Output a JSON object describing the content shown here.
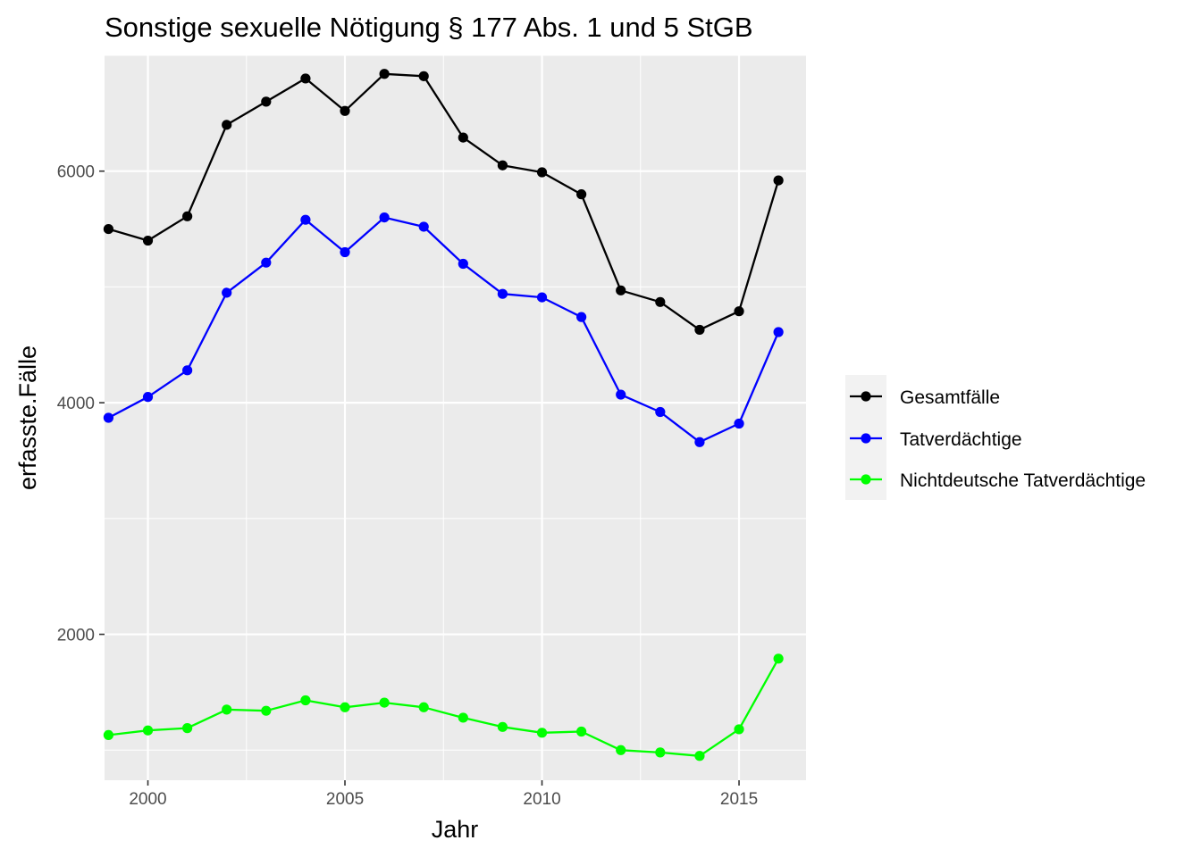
{
  "chart_data": {
    "type": "line",
    "title": "Sonstige sexuelle Nötigung § 177 Abs. 1 und 5 StGB",
    "xlabel": "Jahr",
    "ylabel": "erfasste.Fälle",
    "xlim": [
      1998.9,
      2016.7
    ],
    "ylim": [
      740,
      7000
    ],
    "x_ticks": [
      2000,
      2005,
      2010,
      2015
    ],
    "y_ticks": [
      2000,
      4000,
      6000
    ],
    "grid": true,
    "legend_position": "right",
    "x": [
      1999,
      2000,
      2001,
      2002,
      2003,
      2004,
      2005,
      2006,
      2007,
      2008,
      2009,
      2010,
      2011,
      2012,
      2013,
      2014,
      2015,
      2016
    ],
    "series": [
      {
        "name": "Gesamtfälle",
        "color": "#000000",
        "values": [
          5500,
          5400,
          5610,
          6400,
          6600,
          6800,
          6520,
          6840,
          6820,
          6290,
          6050,
          5990,
          5800,
          4970,
          4870,
          4630,
          4790,
          5920
        ]
      },
      {
        "name": "Tatverdächtige",
        "color": "#0000ff",
        "values": [
          3870,
          4050,
          4280,
          4950,
          5210,
          5580,
          5300,
          5600,
          5520,
          5200,
          4940,
          4910,
          4740,
          4070,
          3920,
          3660,
          3820,
          4610
        ]
      },
      {
        "name": "Nichtdeutsche Tatverdächtige",
        "color": "#00ff00",
        "values": [
          1130,
          1170,
          1190,
          1350,
          1340,
          1430,
          1370,
          1410,
          1370,
          1280,
          1200,
          1150,
          1160,
          1000,
          980,
          950,
          1180,
          1790
        ]
      }
    ]
  }
}
